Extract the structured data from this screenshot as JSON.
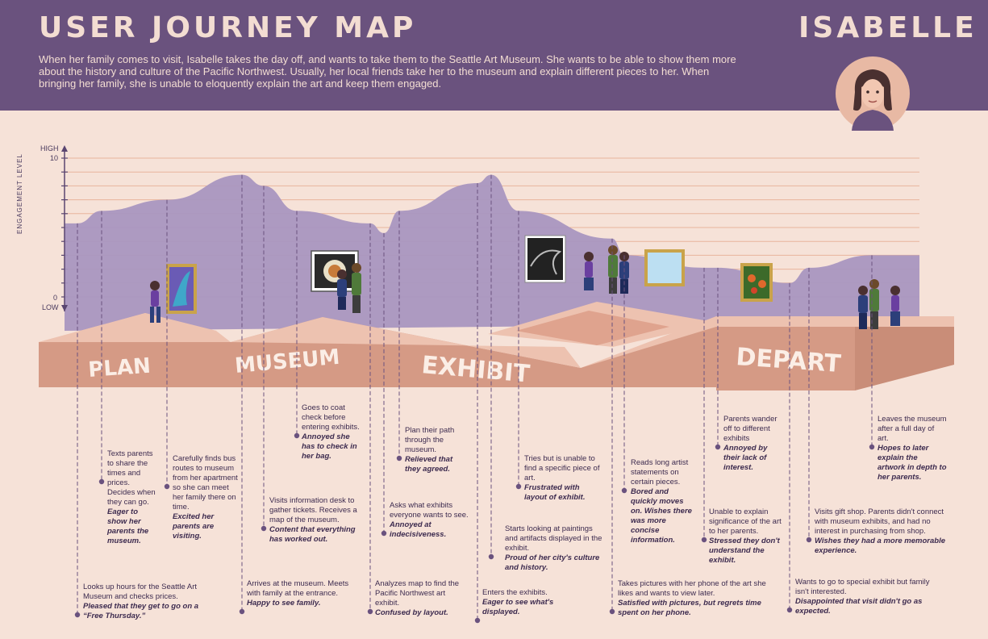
{
  "header": {
    "title": "USER JOURNEY MAP",
    "persona_name": "ISABELLE",
    "intro": "When her family comes to visit, Isabelle takes the day off, and wants to take them to the Seattle Art Museum. She wants to be able to show them more about the history and culture of the Pacific Northwest. Usually, her local friends take her to the museum and explain different pieces to her.  When bringing her family, she is unable to eloquently explain the art and keep them engaged."
  },
  "axis": {
    "high": "HIGH",
    "max": "10",
    "zero": "0",
    "low": "LOW",
    "title": "ENGAGEMENT  LEVEL"
  },
  "stages": [
    "PLAN",
    "MUSEUM",
    "EXHIBIT",
    "DEPART"
  ],
  "colors": {
    "header_bg": "#6a527e",
    "page_bg": "#f6e2d8",
    "area": "#a996c0",
    "path_top": "#edc2b0",
    "path_front": "#d59a85",
    "marker": "#6a527e"
  },
  "notes": [
    {
      "text": "Looks up hours for the Seattle Art Museum and checks prices.",
      "em": "Pleased that they get to go on a “Free Thursday.”"
    },
    {
      "text": "Texts parents to share the times and prices. Decides when they can go.",
      "em": "Eager to show her parents the museum."
    },
    {
      "text": "Carefully finds bus routes to museum from her apartment so she can meet her family there on time.",
      "em": "Excited her parents are visiting."
    },
    {
      "text": "Arrives at the museum. Meets with family at the entrance.",
      "em": "Happy to see family."
    },
    {
      "text": "Visits information desk to gather tickets. Receives a map of the museum.",
      "em": "Content that everything has worked out."
    },
    {
      "text": "Goes to coat check before entering exhibits.",
      "em": "Annoyed she has to check in her bag."
    },
    {
      "text": "Analyzes map to find the Pacific Northwest art exhibit.",
      "em": "Confused by layout."
    },
    {
      "text": "Asks what exhibits everyone wants to see.",
      "em": "Annoyed at indecisiveness."
    },
    {
      "text": "Plan their path through the museum.",
      "em": "Relieved that they agreed."
    },
    {
      "text": "Enters the exhibits.",
      "em": "Eager to see what's displayed."
    },
    {
      "text": "Starts looking at paintings and artifacts displayed in the exhibit.",
      "em": "Proud of her city's culture and history."
    },
    {
      "text": "Tries but is unable to find a specific piece of art.",
      "em": "Frustrated with layout of exhibit."
    },
    {
      "text": "Takes pictures with her phone of the art she likes and wants to view later.",
      "em": "Satisfied with pictures, but regrets time spent on her phone."
    },
    {
      "text": "Reads long artist statements on certain pieces.",
      "em": "Bored and quickly moves on. Wishes there was more concise information."
    },
    {
      "text": "Unable to explain significance of the art to her parents.",
      "em": "Stressed they don't understand the exhibit."
    },
    {
      "text": "Parents wander off to different exhibits",
      "em": "Annoyed by their lack of interest."
    },
    {
      "text": "Wants to go to special exhibit but family isn't interested.",
      "em": "Disappointed that visit didn't go as expected."
    },
    {
      "text": "Visits gift shop. Parents didn't connect with museum exhibits, and had no interest in purchasing from shop.",
      "em": "Wishes they had a more memorable experience."
    },
    {
      "text": "Leaves the museum after a full day of art.",
      "em": "Hopes to later explain the artwork in depth to her parents."
    }
  ],
  "chart_data": {
    "type": "area",
    "ylim": [
      0,
      10
    ],
    "x": [
      1,
      2,
      3,
      4,
      5,
      6,
      7,
      8,
      9,
      10,
      11,
      12,
      13,
      14,
      15,
      16,
      17,
      18,
      19
    ],
    "values": [
      5.3,
      6.2,
      7.0,
      8.8,
      8.0,
      6.2,
      5.3,
      4.6,
      6.2,
      8.2,
      8.8,
      6.2,
      4.2,
      3.0,
      2.1,
      2.1,
      1.0,
      2.1,
      3.0
    ]
  }
}
